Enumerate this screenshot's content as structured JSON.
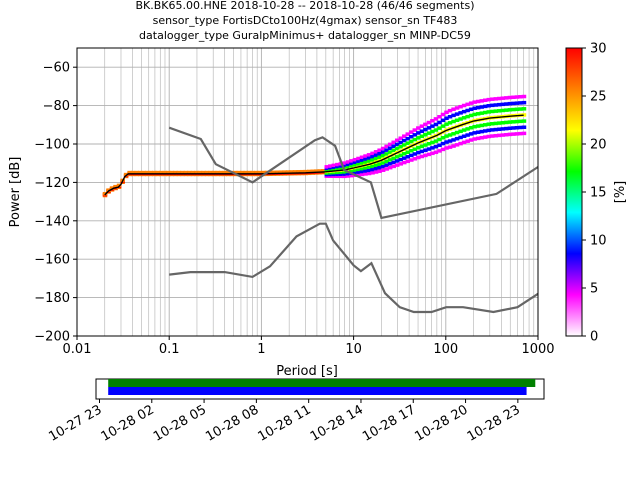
{
  "chart_data": [
    {
      "type": "heatmap",
      "title_lines": [
        "BK.BK65.00.HNE   2018-10-28 -- 2018-10-28  (46/46 segments)",
        "sensor_type FortisDCto100Hz(4gmax) sensor_sn TF483",
        "datalogger_type GuralpMinimus+ datalogger_sn MINP-DC59"
      ],
      "xlabel": "Period [s]",
      "ylabel": "Power [dB]",
      "xscale": "log",
      "xlim": [
        0.01,
        1000
      ],
      "ylim": [
        -200,
        -50
      ],
      "x_ticks": [
        0.01,
        0.1,
        1,
        10,
        100,
        1000
      ],
      "x_tick_labels": [
        "0.01",
        "0.1",
        "1",
        "10",
        "100",
        "1000"
      ],
      "y_ticks": [
        -200,
        -180,
        -160,
        -140,
        -120,
        -100,
        -80,
        -60
      ],
      "y_tick_labels": [
        "−200",
        "−180",
        "−160",
        "−140",
        "−120",
        "−100",
        "−80",
        "−60"
      ],
      "grid": true,
      "colorbar": {
        "label": "[%]",
        "range": [
          0,
          30
        ],
        "ticks": [
          0,
          5,
          10,
          15,
          20,
          25,
          30
        ],
        "tick_labels": [
          "0",
          "5",
          "10",
          "15",
          "20",
          "25",
          "30"
        ],
        "colors": [
          "#ffffff",
          "#ff00ff",
          "#0000ff",
          "#00ffff",
          "#00ff00",
          "#ffff00",
          "#ff8000",
          "#ff0000"
        ]
      },
      "series": [
        {
          "role": "mode",
          "color": "#000000",
          "x": [
            0.02,
            0.022,
            0.025,
            0.028,
            0.03,
            0.033,
            0.036,
            0.05,
            0.1,
            0.5,
            1,
            3,
            5,
            8,
            10,
            15,
            20,
            30,
            50,
            80,
            100,
            150,
            200,
            300,
            500,
            700
          ],
          "y": [
            -126.5,
            -124.5,
            -123,
            -122.5,
            -121,
            -117,
            -115.5,
            -115.5,
            -115.5,
            -115.5,
            -115.5,
            -115,
            -114.5,
            -113.5,
            -112.5,
            -110.5,
            -108.5,
            -104.5,
            -99.5,
            -95.5,
            -93,
            -90,
            -88,
            -86.5,
            -85.5,
            -85
          ]
        },
        {
          "role": "model-upper",
          "color": "#666666",
          "x": [
            0.1,
            0.22,
            0.32,
            0.8,
            3.8,
            4.6,
            6.3,
            7.9,
            15.4,
            20,
            354.8,
            1000
          ],
          "y": [
            -91.5,
            -97.4,
            -110.5,
            -120,
            -98,
            -96.5,
            -101,
            -113.5,
            -120,
            -138.5,
            -126,
            -112
          ]
        },
        {
          "role": "model-lower",
          "color": "#666666",
          "x": [
            0.1,
            0.17,
            0.4,
            0.8,
            1.24,
            2.4,
            4.3,
            5,
            6,
            10,
            12,
            15.6,
            21.9,
            31.6,
            45,
            70,
            101,
            154,
            328,
            600,
            1000
          ],
          "y": [
            -168,
            -166.7,
            -166.7,
            -169.2,
            -163.7,
            -148.1,
            -141.5,
            -141.5,
            -150.2,
            -163.2,
            -166.2,
            -162.1,
            -177.7,
            -185,
            -187.5,
            -187.5,
            -185,
            -185,
            -187.5,
            -185,
            -178
          ]
        }
      ]
    },
    {
      "type": "timeline",
      "ticks": [
        "10-27 23",
        "10-28 02",
        "10-28 05",
        "10-28 08",
        "10-28 11",
        "10-28 14",
        "10-28 17",
        "10-28 20",
        "10-28 23"
      ],
      "tick_hours": [
        23,
        26,
        29,
        32,
        35,
        38,
        41,
        44,
        47
      ],
      "range_hours": [
        22.8,
        48.5
      ],
      "bars": [
        {
          "color": "#008000",
          "start_hour": 23.5,
          "end_hour": 48.0
        },
        {
          "color": "#0000ff",
          "start_hour": 23.5,
          "end_hour": 47.5
        }
      ]
    }
  ]
}
